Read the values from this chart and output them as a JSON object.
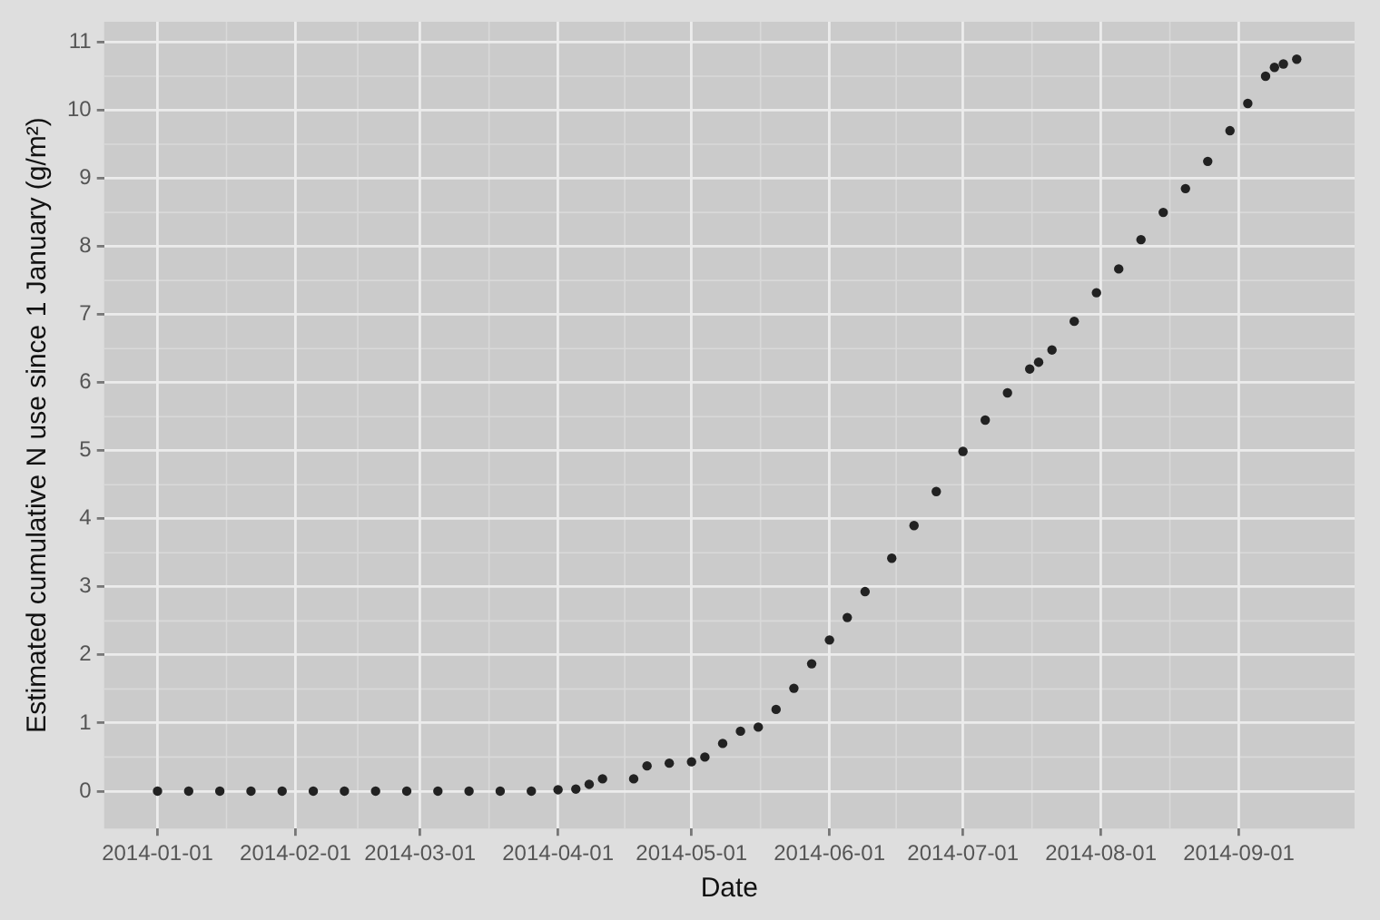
{
  "chart_data": {
    "type": "scatter",
    "xlabel": "Date",
    "ylabel": "Estimated cumulative N use since 1 January (g/m²)",
    "x": [
      "2014-01-01",
      "2014-01-08",
      "2014-01-15",
      "2014-01-22",
      "2014-01-29",
      "2014-02-05",
      "2014-02-12",
      "2014-02-19",
      "2014-02-26",
      "2014-03-05",
      "2014-03-12",
      "2014-03-19",
      "2014-03-26",
      "2014-04-01",
      "2014-04-05",
      "2014-04-08",
      "2014-04-11",
      "2014-04-18",
      "2014-04-21",
      "2014-04-26",
      "2014-05-01",
      "2014-05-04",
      "2014-05-08",
      "2014-05-12",
      "2014-05-16",
      "2014-05-20",
      "2014-05-24",
      "2014-05-28",
      "2014-06-01",
      "2014-06-05",
      "2014-06-09",
      "2014-06-15",
      "2014-06-20",
      "2014-06-25",
      "2014-07-01",
      "2014-07-06",
      "2014-07-11",
      "2014-07-16",
      "2014-07-18",
      "2014-07-21",
      "2014-07-26",
      "2014-07-31",
      "2014-08-05",
      "2014-08-10",
      "2014-08-15",
      "2014-08-20",
      "2014-08-25",
      "2014-08-30",
      "2014-09-03",
      "2014-09-07",
      "2014-09-09",
      "2014-09-11",
      "2014-09-14"
    ],
    "series": [
      {
        "color": "#222222",
        "values": [
          0,
          0,
          0,
          0,
          0,
          0,
          0,
          0,
          0,
          0,
          0,
          0,
          0,
          0.02,
          0.03,
          0.1,
          0.18,
          0.18,
          0.37,
          0.41,
          0.43,
          0.5,
          0.7,
          0.88,
          0.94,
          1.2,
          1.51,
          1.87,
          2.22,
          2.55,
          2.93,
          3.42,
          3.9,
          4.4,
          4.99,
          5.45,
          5.85,
          6.2,
          6.3,
          6.48,
          6.9,
          7.32,
          7.67,
          8.1,
          8.5,
          8.85,
          9.25,
          9.7,
          10.1,
          10.5,
          10.63,
          10.68,
          10.75
        ]
      }
    ],
    "xlim": [
      "2013-12-20",
      "2014-09-27"
    ],
    "xticks": [
      "2014-01-01",
      "2014-02-01",
      "2014-03-01",
      "2014-04-01",
      "2014-05-01",
      "2014-06-01",
      "2014-07-01",
      "2014-08-01",
      "2014-09-01"
    ],
    "ylim": [
      -0.55,
      11.3
    ],
    "yticks": [
      0,
      1,
      2,
      3,
      4,
      5,
      6,
      7,
      8,
      9,
      10,
      11
    ],
    "grid": true,
    "legend": false,
    "marker": "circle"
  }
}
